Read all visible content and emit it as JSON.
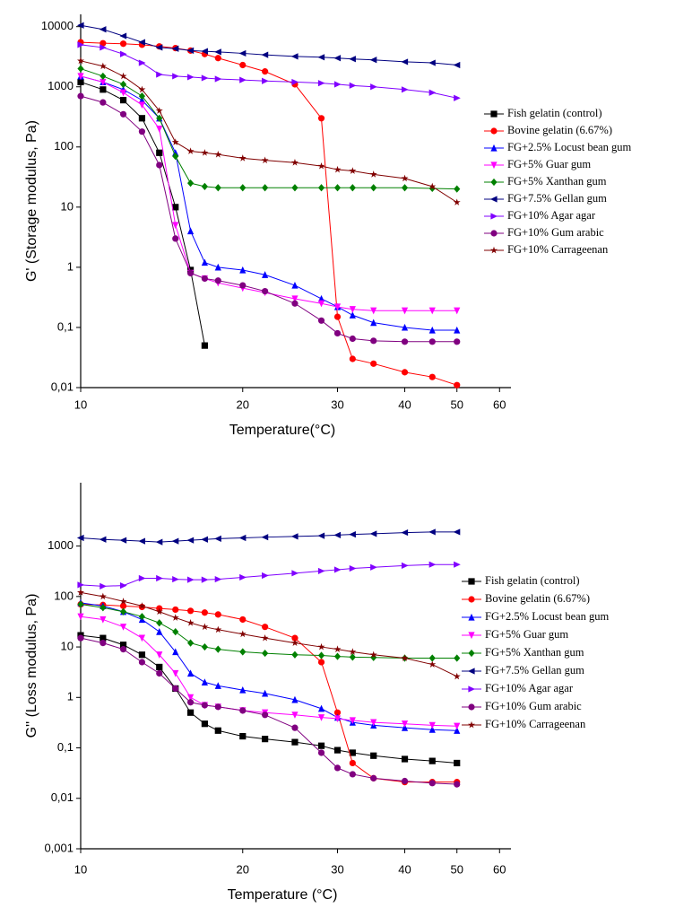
{
  "chart_data": [
    {
      "type": "line",
      "xscale": "log",
      "yscale": "log",
      "legend": "right",
      "x_label": "Temperature(°C)",
      "y_label": "G' (Storage modulus, Pa)",
      "xlim": [
        10,
        63
      ],
      "xticks": [
        10,
        20,
        30,
        40,
        50,
        60
      ],
      "ylim": [
        0.01,
        16000
      ],
      "yticks": [
        {
          "value": 0.01,
          "label": "0,01"
        },
        {
          "value": 0.1,
          "label": "0,1"
        },
        1,
        10,
        100,
        1000,
        10000
      ],
      "x": [
        10,
        11,
        12,
        13,
        14,
        15,
        16,
        17,
        18,
        20,
        22,
        25,
        28,
        30,
        32,
        35,
        40,
        45,
        50
      ],
      "series": [
        {
          "name": "Fish gelatin (control)",
          "color": "#000000",
          "marker": "square",
          "values": [
            1200,
            900,
            600,
            300,
            80,
            10,
            0.9,
            0.05,
            null,
            null,
            null,
            null,
            null,
            null,
            null,
            null,
            null,
            null,
            null
          ]
        },
        {
          "name": "Bovine gelatin (6.67%)",
          "color": "#ff0000",
          "marker": "circle",
          "values": [
            5500,
            5300,
            5200,
            5000,
            4700,
            4400,
            4000,
            3500,
            3000,
            2300,
            1800,
            1100,
            300,
            0.15,
            0.03,
            0.025,
            0.018,
            0.015,
            0.011
          ]
        },
        {
          "name": "FG+2.5% Locust bean gum",
          "color": "#0000ff",
          "marker": "triangle-up",
          "values": [
            1500,
            1200,
            900,
            600,
            300,
            80,
            4,
            1.2,
            1.0,
            0.9,
            0.75,
            0.5,
            0.3,
            0.22,
            0.16,
            0.12,
            0.1,
            0.09,
            0.09
          ]
        },
        {
          "name": "FG+5% Guar gum",
          "color": "#ff00ff",
          "marker": "triangle-down",
          "values": [
            1500,
            1200,
            800,
            500,
            200,
            5,
            0.8,
            0.65,
            0.55,
            0.45,
            0.38,
            0.3,
            0.25,
            0.22,
            0.2,
            0.19,
            0.19,
            0.19,
            0.19
          ]
        },
        {
          "name": "FG+5% Xanthan gum",
          "color": "#008000",
          "marker": "diamond",
          "values": [
            2000,
            1500,
            1100,
            700,
            300,
            70,
            25,
            22,
            21,
            21,
            21,
            21,
            21,
            21,
            21,
            21,
            21,
            20.5,
            20
          ]
        },
        {
          "name": "FG+7.5% Gellan gum",
          "color": "#000080",
          "marker": "triangle-left",
          "values": [
            10500,
            9000,
            7000,
            5500,
            4500,
            4300,
            4000,
            3900,
            3800,
            3600,
            3400,
            3200,
            3100,
            3000,
            2900,
            2800,
            2600,
            2500,
            2300
          ]
        },
        {
          "name": "FG+10% Agar agar",
          "color": "#8000ff",
          "marker": "triangle-right",
          "values": [
            5000,
            4500,
            3500,
            2500,
            1600,
            1500,
            1450,
            1400,
            1350,
            1300,
            1250,
            1200,
            1150,
            1100,
            1050,
            1000,
            900,
            800,
            650
          ]
        },
        {
          "name": "FG+10% Gum arabic",
          "color": "#800080",
          "marker": "circle",
          "values": [
            700,
            550,
            350,
            180,
            50,
            3,
            0.8,
            0.65,
            0.6,
            0.5,
            0.4,
            0.25,
            0.13,
            0.08,
            0.065,
            0.06,
            0.058,
            0.058,
            0.058
          ]
        },
        {
          "name": "FG+10% Carrageenan",
          "color": "#800000",
          "marker": "star",
          "values": [
            2700,
            2200,
            1500,
            900,
            400,
            120,
            85,
            80,
            75,
            65,
            60,
            55,
            48,
            42,
            40,
            35,
            30,
            22,
            12
          ]
        }
      ]
    },
    {
      "type": "line",
      "xscale": "log",
      "yscale": "log",
      "legend": "right",
      "x_label": "Temperature (°C)",
      "y_label": "G'' (Loss modulus, Pa)",
      "xlim": [
        10,
        63
      ],
      "xticks": [
        10,
        20,
        30,
        40,
        50,
        60
      ],
      "ylim": [
        0.001,
        18000
      ],
      "yticks": [
        {
          "value": 0.001,
          "label": "0,001"
        },
        {
          "value": 0.01,
          "label": "0,01"
        },
        {
          "value": 0.1,
          "label": "0,1"
        },
        1,
        10,
        100,
        1000
      ],
      "x": [
        10,
        11,
        12,
        13,
        14,
        15,
        16,
        17,
        18,
        20,
        22,
        25,
        28,
        30,
        32,
        35,
        40,
        45,
        50
      ],
      "series": [
        {
          "name": "Fish gelatin (control)",
          "color": "#000000",
          "marker": "square",
          "values": [
            17,
            15,
            11,
            7,
            4,
            1.5,
            0.5,
            0.3,
            0.22,
            0.17,
            0.15,
            0.13,
            0.11,
            0.09,
            0.08,
            0.07,
            0.06,
            0.055,
            0.05
          ]
        },
        {
          "name": "Bovine gelatin (6.67%)",
          "color": "#ff0000",
          "marker": "circle",
          "values": [
            70,
            68,
            65,
            62,
            58,
            55,
            52,
            48,
            44,
            35,
            25,
            15,
            5,
            0.5,
            0.05,
            0.025,
            0.021,
            0.021,
            0.021
          ]
        },
        {
          "name": "FG+2.5% Locust bean gum",
          "color": "#0000ff",
          "marker": "triangle-up",
          "values": [
            75,
            65,
            50,
            35,
            20,
            8,
            3,
            2,
            1.7,
            1.4,
            1.2,
            0.9,
            0.6,
            0.4,
            0.32,
            0.28,
            0.25,
            0.23,
            0.22
          ]
        },
        {
          "name": "FG+5% Guar gum",
          "color": "#ff00ff",
          "marker": "triangle-down",
          "values": [
            40,
            35,
            25,
            15,
            7,
            3,
            1,
            0.7,
            0.65,
            0.55,
            0.5,
            0.45,
            0.4,
            0.38,
            0.35,
            0.32,
            0.3,
            0.28,
            0.27
          ]
        },
        {
          "name": "FG+5% Xanthan gum",
          "color": "#008000",
          "marker": "diamond",
          "values": [
            70,
            60,
            50,
            40,
            30,
            20,
            12,
            10,
            9,
            8,
            7.5,
            7,
            6.8,
            6.5,
            6.3,
            6.2,
            6,
            6,
            6
          ]
        },
        {
          "name": "FG+7.5% Gellan gum",
          "color": "#000080",
          "marker": "triangle-left",
          "values": [
            1450,
            1350,
            1300,
            1250,
            1200,
            1250,
            1300,
            1350,
            1400,
            1450,
            1500,
            1550,
            1600,
            1650,
            1700,
            1750,
            1850,
            1900,
            1900
          ]
        },
        {
          "name": "FG+10% Agar agar",
          "color": "#8000ff",
          "marker": "triangle-right",
          "values": [
            170,
            160,
            165,
            230,
            230,
            220,
            215,
            215,
            220,
            240,
            260,
            290,
            320,
            340,
            360,
            380,
            410,
            430,
            430
          ]
        },
        {
          "name": "FG+10% Gum arabic",
          "color": "#800080",
          "marker": "circle",
          "values": [
            15,
            12,
            9,
            5,
            3,
            1.5,
            0.8,
            0.7,
            0.65,
            0.55,
            0.45,
            0.25,
            0.08,
            0.04,
            0.03,
            0.025,
            0.022,
            0.02,
            0.019
          ]
        },
        {
          "name": "FG+10% Carrageenan",
          "color": "#800000",
          "marker": "star",
          "values": [
            120,
            100,
            80,
            65,
            50,
            38,
            30,
            25,
            22,
            18,
            15,
            12,
            10,
            9,
            8,
            7,
            6,
            4.5,
            2.6
          ]
        }
      ]
    }
  ]
}
